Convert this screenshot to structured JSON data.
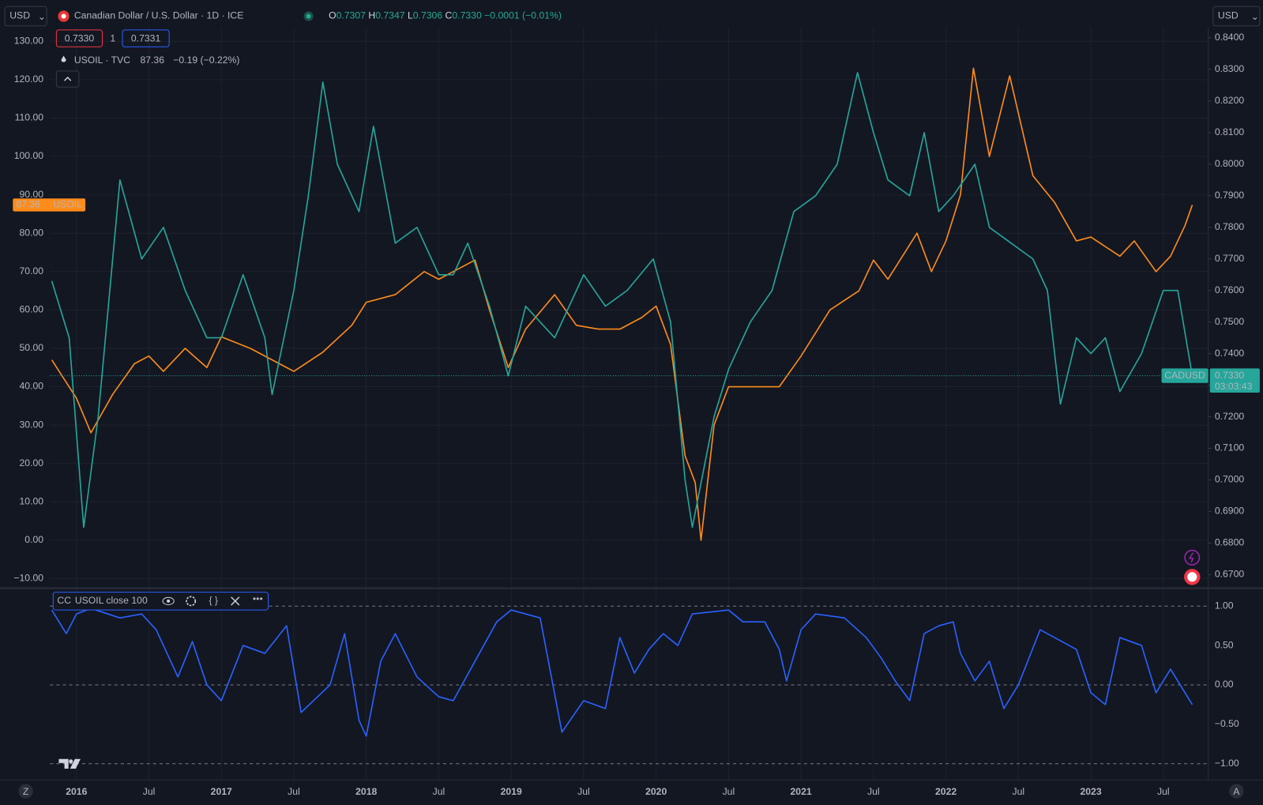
{
  "header": {
    "currency_left": "USD",
    "currency_right": "USD",
    "title": "Canadian Dollar / U.S. Dollar · 1D · ICE",
    "ohlc": [
      {
        "key": "O",
        "value": "0.7307"
      },
      {
        "key": "H",
        "value": "0.7347"
      },
      {
        "key": "L",
        "value": "0.7306"
      },
      {
        "key": "C",
        "value": "0.7330"
      }
    ],
    "change": "−0.0001 (−0.01%)",
    "bid": "0.7330",
    "spread": "1",
    "ask": "0.7331",
    "overlay_symbol": "USOIL · TVC",
    "overlay_price": "87.36",
    "overlay_change": "−0.19 (−0.22%)",
    "overlay_badge_price": "87.36",
    "overlay_badge_name": "USOIL",
    "main_badge_name": "CADUSD",
    "main_badge_price": "0.7330",
    "countdown": "03:03:43",
    "indicator_name": "CC",
    "indicator_args": "USOIL close 100",
    "corner_left": "Z",
    "corner_right": "A"
  },
  "chart_data": [
    {
      "type": "line",
      "xlim": [
        2015.817,
        2023.81
      ],
      "xticks": [
        2016,
        {
          "value": 2016.5,
          "label": "Jul"
        },
        2017,
        {
          "value": 2017.5,
          "label": "Jul"
        },
        2018,
        {
          "value": 2018.5,
          "label": "Jul"
        },
        2019,
        {
          "value": 2019.5,
          "label": "Jul"
        },
        2020,
        {
          "value": 2020.5,
          "label": "Jul"
        },
        2021,
        {
          "value": 2021.5,
          "label": "Jul"
        },
        2022,
        {
          "value": 2022.5,
          "label": "Jul"
        },
        2023,
        {
          "value": 2023.5,
          "label": "Jul"
        }
      ],
      "ylim": [
        -12.5,
        133.6
      ],
      "yticks": [
        {
          "value": 130,
          "label": "130.00"
        },
        {
          "value": 120,
          "label": "120.00"
        },
        {
          "value": 110,
          "label": "110.00"
        },
        {
          "value": 100,
          "label": "100.00"
        },
        {
          "value": 90,
          "label": "90.00"
        },
        {
          "value": 80,
          "label": "80.00"
        },
        {
          "value": 70,
          "label": "70.00"
        },
        {
          "value": 60,
          "label": "60.00"
        },
        {
          "value": 50,
          "label": "50.00"
        },
        {
          "value": 40,
          "label": "40.00"
        },
        {
          "value": 30,
          "label": "30.00"
        },
        {
          "value": 20,
          "label": "20.00"
        },
        {
          "value": 10,
          "label": "10.00"
        },
        {
          "value": 0,
          "label": "0.00"
        },
        {
          "value": -10,
          "label": "−10.00"
        }
      ],
      "y2lim": [
        0.6657,
        0.8433
      ],
      "y2ticks": [
        {
          "value": 0.84,
          "label": "0.8400"
        },
        {
          "value": 0.83,
          "label": "0.8300"
        },
        {
          "value": 0.82,
          "label": "0.8200"
        },
        {
          "value": 0.81,
          "label": "0.8100"
        },
        {
          "value": 0.8,
          "label": "0.8000"
        },
        {
          "value": 0.79,
          "label": "0.7900"
        },
        {
          "value": 0.78,
          "label": "0.7800"
        },
        {
          "value": 0.77,
          "label": "0.7700"
        },
        {
          "value": 0.76,
          "label": "0.7600"
        },
        {
          "value": 0.75,
          "label": "0.7500"
        },
        {
          "value": 0.74,
          "label": "0.7400"
        },
        {
          "value": 0.73,
          "label": "0.7300"
        },
        {
          "value": 0.72,
          "label": "0.7200"
        },
        {
          "value": 0.71,
          "label": "0.7100"
        },
        {
          "value": 0.7,
          "label": "0.7000"
        },
        {
          "value": 0.69,
          "label": "0.6900"
        },
        {
          "value": 0.68,
          "label": "0.6800"
        },
        {
          "value": 0.67,
          "label": "0.6700"
        }
      ],
      "grid": true,
      "series": [
        {
          "name": "USOIL",
          "color": "#ff8c1a",
          "x": [
            2015.83,
            2016.0,
            2016.1,
            2016.25,
            2016.4,
            2016.5,
            2016.6,
            2016.75,
            2016.9,
            2017.0,
            2017.2,
            2017.4,
            2017.5,
            2017.7,
            2017.9,
            2018.0,
            2018.2,
            2018.4,
            2018.5,
            2018.6,
            2018.75,
            2018.85,
            2018.98,
            2019.1,
            2019.3,
            2019.45,
            2019.6,
            2019.75,
            2019.9,
            2020.0,
            2020.1,
            2020.2,
            2020.27,
            2020.31,
            2020.4,
            2020.5,
            2020.7,
            2020.85,
            2021.0,
            2021.2,
            2021.4,
            2021.5,
            2021.6,
            2021.8,
            2021.9,
            2022.0,
            2022.1,
            2022.19,
            2022.3,
            2022.44,
            2022.6,
            2022.75,
            2022.9,
            2023.0,
            2023.2,
            2023.3,
            2023.45,
            2023.55,
            2023.65,
            2023.7
          ],
          "values": [
            47,
            37,
            28,
            38,
            46,
            48,
            44,
            50,
            45,
            53,
            50,
            46,
            44,
            49,
            56,
            62,
            64,
            70,
            68,
            70,
            73,
            60,
            45,
            55,
            64,
            56,
            55,
            55,
            58,
            61,
            51,
            22,
            15,
            0,
            30,
            40,
            40,
            40,
            48,
            60,
            65,
            73,
            68,
            80,
            70,
            78,
            90,
            123,
            100,
            121,
            95,
            88,
            78,
            79,
            74,
            78,
            70,
            74,
            82,
            87.36
          ]
        },
        {
          "name": "CADUSD",
          "color": "#26a69a",
          "axis": "y2",
          "x": [
            2015.83,
            2015.95,
            2016.0,
            2016.05,
            2016.15,
            2016.3,
            2016.45,
            2016.6,
            2016.75,
            2016.9,
            2017.0,
            2017.15,
            2017.3,
            2017.35,
            2017.5,
            2017.6,
            2017.7,
            2017.8,
            2017.95,
            2018.05,
            2018.2,
            2018.35,
            2018.5,
            2018.6,
            2018.7,
            2018.85,
            2018.98,
            2019.1,
            2019.3,
            2019.5,
            2019.65,
            2019.8,
            2019.98,
            2020.1,
            2020.2,
            2020.25,
            2020.4,
            2020.5,
            2020.65,
            2020.8,
            2020.95,
            2021.1,
            2021.25,
            2021.39,
            2021.5,
            2021.6,
            2021.75,
            2021.85,
            2021.95,
            2022.05,
            2022.2,
            2022.3,
            2022.45,
            2022.6,
            2022.7,
            2022.79,
            2022.9,
            2023.0,
            2023.1,
            2023.2,
            2023.35,
            2023.5,
            2023.6,
            2023.7
          ],
          "values": [
            0.763,
            0.745,
            0.715,
            0.685,
            0.72,
            0.795,
            0.77,
            0.78,
            0.76,
            0.745,
            0.745,
            0.765,
            0.745,
            0.727,
            0.76,
            0.79,
            0.826,
            0.8,
            0.785,
            0.812,
            0.775,
            0.78,
            0.765,
            0.765,
            0.775,
            0.755,
            0.733,
            0.755,
            0.745,
            0.765,
            0.755,
            0.76,
            0.77,
            0.75,
            0.7,
            0.685,
            0.72,
            0.735,
            0.75,
            0.76,
            0.785,
            0.79,
            0.8,
            0.829,
            0.81,
            0.795,
            0.79,
            0.81,
            0.785,
            0.79,
            0.8,
            0.78,
            0.775,
            0.77,
            0.76,
            0.724,
            0.745,
            0.74,
            0.745,
            0.728,
            0.74,
            0.76,
            0.76,
            0.733
          ]
        }
      ]
    },
    {
      "type": "line",
      "xlim": [
        2015.817,
        2023.81
      ],
      "ylim": [
        -1.206,
        1.227
      ],
      "yticks": [
        {
          "value": 1,
          "label": "1.00"
        },
        {
          "value": 0.5,
          "label": "0.50"
        },
        {
          "value": 0,
          "label": "0.00"
        },
        {
          "value": -0.5,
          "label": "−0.50"
        },
        {
          "value": -1,
          "label": "−1.00"
        }
      ],
      "hlines": [
        1,
        0,
        -1
      ],
      "series": [
        {
          "name": "CC",
          "color": "#2962ff",
          "x": [
            2015.83,
            2015.93,
            2016.0,
            2016.1,
            2016.3,
            2016.45,
            2016.55,
            2016.7,
            2016.8,
            2016.9,
            2017.0,
            2017.15,
            2017.3,
            2017.45,
            2017.55,
            2017.75,
            2017.85,
            2017.95,
            2018.0,
            2018.1,
            2018.2,
            2018.35,
            2018.5,
            2018.6,
            2018.75,
            2018.9,
            2019.0,
            2019.2,
            2019.35,
            2019.5,
            2019.65,
            2019.75,
            2019.85,
            2019.95,
            2020.05,
            2020.15,
            2020.25,
            2020.5,
            2020.6,
            2020.75,
            2020.85,
            2020.9,
            2021.0,
            2021.1,
            2021.3,
            2021.45,
            2021.55,
            2021.65,
            2021.75,
            2021.85,
            2021.95,
            2022.05,
            2022.1,
            2022.2,
            2022.3,
            2022.4,
            2022.5,
            2022.65,
            2022.8,
            2022.9,
            2023.0,
            2023.1,
            2023.2,
            2023.35,
            2023.45,
            2023.55,
            2023.65,
            2023.7
          ],
          "values": [
            0.95,
            0.65,
            0.9,
            0.97,
            0.85,
            0.9,
            0.7,
            0.1,
            0.55,
            0.0,
            -0.2,
            0.5,
            0.4,
            0.75,
            -0.35,
            0.0,
            0.65,
            -0.45,
            -0.65,
            0.3,
            0.65,
            0.1,
            -0.15,
            -0.2,
            0.3,
            0.8,
            0.95,
            0.85,
            -0.6,
            -0.2,
            -0.3,
            0.6,
            0.15,
            0.45,
            0.65,
            0.5,
            0.9,
            0.95,
            0.8,
            0.8,
            0.45,
            0.05,
            0.7,
            0.9,
            0.85,
            0.6,
            0.35,
            0.05,
            -0.2,
            0.65,
            0.75,
            0.8,
            0.4,
            0.05,
            0.3,
            -0.3,
            0.0,
            0.7,
            0.55,
            0.45,
            -0.1,
            -0.25,
            0.6,
            0.5,
            -0.1,
            0.2,
            -0.1,
            -0.25
          ]
        }
      ]
    }
  ]
}
